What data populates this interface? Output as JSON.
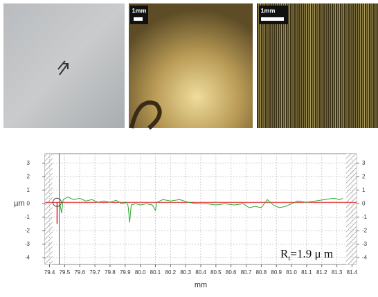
{
  "scale_bars": [
    "1mm",
    "1mm"
  ],
  "chart_data": {
    "type": "line",
    "y_label": "µm",
    "x_label": "mm",
    "annotation": {
      "symbol": "R",
      "subscript": "t",
      "value_text": "=1.9 μ m"
    },
    "xlim": [
      79.37,
      81.43
    ],
    "ylim": [
      -4.5,
      3.7
    ],
    "xticks": [
      79.4,
      79.5,
      79.6,
      79.7,
      79.8,
      79.9,
      {
        "value": 80,
        "label": "80.0"
      },
      80.1,
      80.2,
      80.3,
      80.4,
      80.5,
      80.6,
      80.7,
      80.8,
      80.9,
      {
        "value": 81,
        "label": "81.0"
      },
      81.1,
      81.2,
      81.3,
      81.4
    ],
    "yticks": [
      3,
      2,
      1,
      0,
      -1,
      -2,
      -3,
      -4
    ],
    "grid": true,
    "excluded_ranges": [
      [
        79.37,
        79.42
      ],
      [
        81.36,
        81.43
      ]
    ],
    "reference_line": {
      "y": 0.1,
      "color": "#dd2222"
    },
    "cursor": {
      "x": 79.45,
      "y": [
        -1.5,
        0.1
      ],
      "color": "#dd2222"
    },
    "series": [
      {
        "color": "#2fa52f",
        "x": [
          79.47,
          79.48,
          79.49,
          79.52,
          79.56,
          79.6,
          79.64,
          79.68,
          79.72,
          79.76,
          79.8,
          79.84,
          79.88,
          79.91,
          79.92,
          79.93,
          79.94,
          79.97,
          80.0,
          80.04,
          80.08,
          80.1,
          80.11,
          80.15,
          80.2,
          80.26,
          80.32,
          80.38,
          80.44,
          80.5,
          80.56,
          80.62,
          80.68,
          80.72,
          80.76,
          80.8,
          80.84,
          80.88,
          80.92,
          80.96,
          81.0,
          81.04,
          81.1,
          81.16,
          81.22,
          81.28,
          81.32,
          81.34
        ],
        "values": [
          -0.1,
          -0.7,
          0.3,
          0.5,
          0.3,
          0.4,
          0.2,
          0.3,
          0.1,
          0.2,
          0.1,
          0.25,
          0.0,
          0.1,
          -0.2,
          -1.4,
          -0.1,
          0.0,
          -0.1,
          0.0,
          -0.1,
          -0.5,
          0.1,
          0.3,
          0.2,
          0.3,
          0.1,
          0.0,
          0.0,
          -0.1,
          0.0,
          -0.1,
          0.0,
          -0.3,
          -0.2,
          -0.3,
          0.3,
          -0.1,
          -0.3,
          -0.2,
          0.0,
          0.2,
          0.1,
          0.2,
          0.3,
          0.4,
          0.3,
          0.4
        ]
      }
    ]
  }
}
